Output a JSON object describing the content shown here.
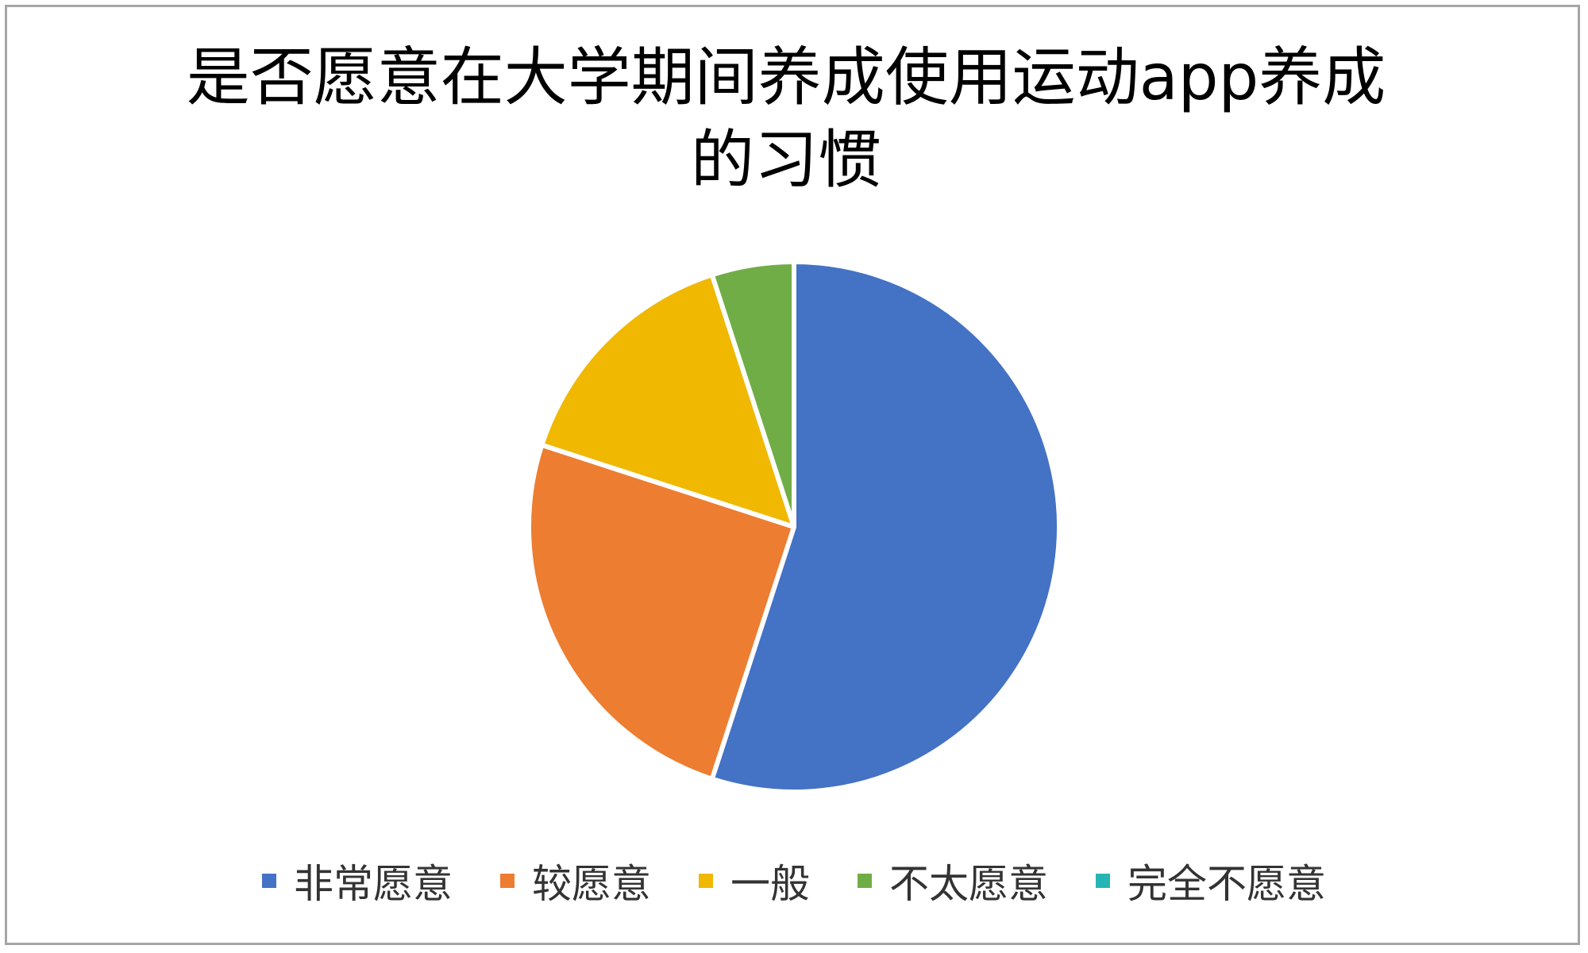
{
  "chart_data": {
    "type": "pie",
    "title_lines": [
      "是否愿意在大学期间养成使用运动app养成",
      "的习惯"
    ],
    "categories": [
      "非常愿意",
      "较愿意",
      "一般",
      "不太愿意",
      "完全不愿意"
    ],
    "values": [
      55,
      25,
      15,
      5,
      0
    ],
    "colors": [
      "#4472c4",
      "#ed7d31",
      "#f0b800",
      "#70ad47",
      "#26b5b5"
    ],
    "legend_position": "bottom",
    "start_angle": "12 o'clock",
    "direction": "clockwise"
  }
}
